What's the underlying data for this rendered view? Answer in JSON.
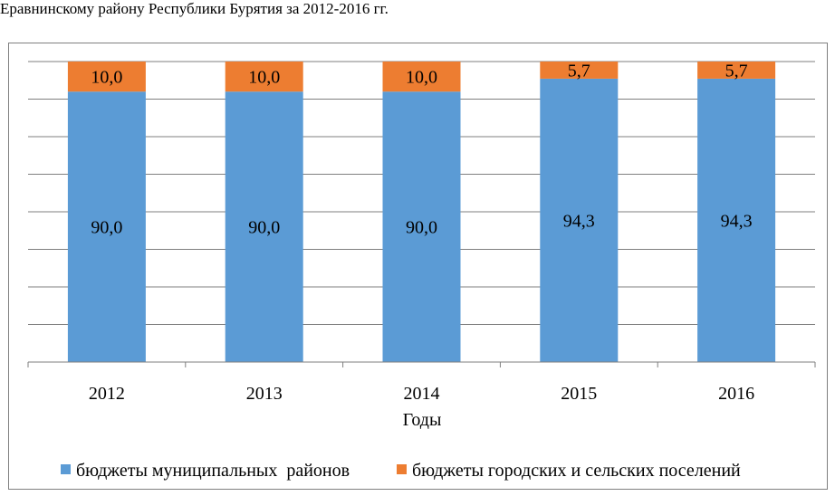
{
  "caption": "Еравнинскому району Республики Бурятия за 2012-2016 гг.",
  "chart_data": {
    "type": "bar",
    "stacked": true,
    "percent": true,
    "categories": [
      "2012",
      "2013",
      "2014",
      "2015",
      "2016"
    ],
    "series": [
      {
        "name": "бюджеты муниципальных  районов",
        "color": "#5b9bd5",
        "values": [
          90.0,
          90.0,
          90.0,
          94.3,
          94.3
        ],
        "labels": [
          "90,0",
          "90,0",
          "90,0",
          "94,3",
          "94,3"
        ]
      },
      {
        "name": "бюджеты городских и сельских поселений",
        "color": "#ed7d31",
        "values": [
          10.0,
          10.0,
          10.0,
          5.7,
          5.7
        ],
        "labels": [
          "10,0",
          "10,0",
          "10,0",
          "5,7",
          "5,7"
        ]
      }
    ],
    "xlabel": "Годы",
    "ylabel": "",
    "ylim": [
      0,
      100
    ],
    "grid": true,
    "legend": "bottom"
  }
}
